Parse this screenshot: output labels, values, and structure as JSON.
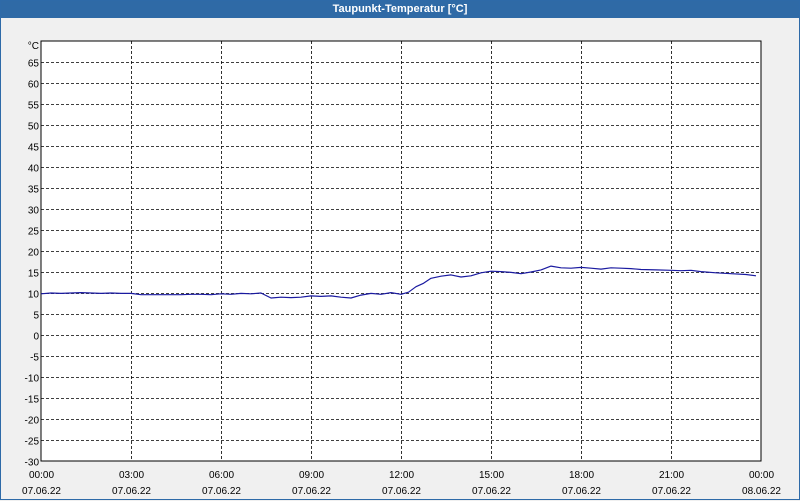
{
  "window": {
    "title": "Taupunkt-Temperatur [°C]"
  },
  "colors": {
    "title_bar": "#2f6aa6",
    "background": "#f0f0f0",
    "plot_background": "#ffffff",
    "grid": "#000000",
    "series": "#1a1aa0"
  },
  "chart_data": {
    "type": "line",
    "title": "Taupunkt-Temperatur [°C]",
    "ylabel": "°C",
    "xlabel": "",
    "ylim": [
      -30,
      70
    ],
    "yticks": [
      65,
      60,
      55,
      50,
      45,
      40,
      35,
      30,
      25,
      20,
      15,
      10,
      5,
      0,
      -5,
      -10,
      -15,
      -20,
      -25,
      -30
    ],
    "xlim": [
      "2022-06-07 00:00",
      "2022-06-08 00:00"
    ],
    "xticks": [
      {
        "time": "00:00",
        "date": "07.06.22"
      },
      {
        "time": "03:00",
        "date": "07.06.22"
      },
      {
        "time": "06:00",
        "date": "07.06.22"
      },
      {
        "time": "09:00",
        "date": "07.06.22"
      },
      {
        "time": "12:00",
        "date": "07.06.22"
      },
      {
        "time": "15:00",
        "date": "07.06.22"
      },
      {
        "time": "18:00",
        "date": "07.06.22"
      },
      {
        "time": "21:00",
        "date": "07.06.22"
      },
      {
        "time": "00:00",
        "date": "08.06.22"
      }
    ],
    "grid": true,
    "grid_style": "dashed",
    "series": [
      {
        "x": [
          "00:00",
          "00:20",
          "00:40",
          "01:00",
          "01:20",
          "01:40",
          "02:00",
          "02:20",
          "02:40",
          "03:00",
          "03:20",
          "03:40",
          "04:00",
          "04:20",
          "04:40",
          "05:00",
          "05:20",
          "05:40",
          "06:00",
          "06:20",
          "06:40",
          "07:00",
          "07:20",
          "07:30",
          "07:40",
          "08:00",
          "08:20",
          "08:40",
          "09:00",
          "09:20",
          "09:40",
          "10:00",
          "10:20",
          "10:40",
          "11:00",
          "11:20",
          "11:40",
          "12:00",
          "12:15",
          "12:30",
          "12:45",
          "13:00",
          "13:20",
          "13:40",
          "14:00",
          "14:20",
          "14:40",
          "15:00",
          "15:20",
          "15:40",
          "16:00",
          "16:20",
          "16:40",
          "17:00",
          "17:20",
          "17:40",
          "18:00",
          "18:20",
          "18:40",
          "19:00",
          "19:20",
          "19:40",
          "20:00",
          "20:30",
          "21:00",
          "21:20",
          "21:40",
          "22:00",
          "22:30",
          "23:00",
          "23:30",
          "23:50"
        ],
        "y": [
          9.8,
          10.0,
          9.9,
          10.0,
          10.1,
          10.0,
          9.9,
          10.0,
          9.9,
          9.9,
          9.6,
          9.6,
          9.6,
          9.6,
          9.6,
          9.7,
          9.7,
          9.6,
          9.8,
          9.7,
          9.9,
          9.8,
          10.0,
          9.4,
          8.8,
          9.0,
          8.9,
          9.0,
          9.3,
          9.2,
          9.3,
          9.0,
          8.8,
          9.5,
          9.9,
          9.7,
          10.1,
          9.7,
          10.2,
          11.5,
          12.3,
          13.5,
          14.0,
          14.3,
          13.8,
          14.1,
          14.8,
          15.2,
          15.1,
          14.9,
          14.6,
          15.0,
          15.5,
          16.4,
          16.0,
          15.9,
          16.1,
          15.9,
          15.7,
          16.0,
          15.9,
          15.8,
          15.6,
          15.5,
          15.4,
          15.3,
          15.4,
          15.1,
          14.8,
          14.6,
          14.4,
          14.1
        ]
      }
    ]
  }
}
